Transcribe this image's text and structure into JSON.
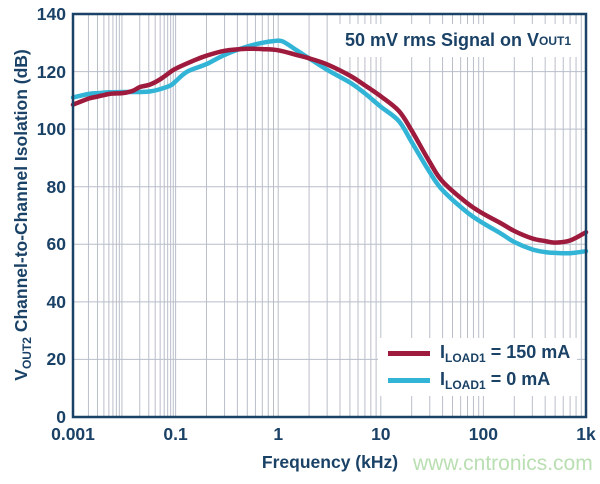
{
  "watermark": "www.cntronics.com",
  "annotation": {
    "pre": "50 mV rms Signal on V",
    "sub": "OUT1"
  },
  "axes": {
    "x_title": "Frequency (kHz)",
    "y_title_pre": "V",
    "y_title_sub": "OUT2",
    "y_title_post": " Channel-to-Channel Isolation (dB)",
    "x_tick_labels": [
      "0.001",
      "0.1",
      "1",
      "10",
      "100",
      "1k"
    ],
    "y_tick_labels": [
      "0",
      "20",
      "40",
      "60",
      "80",
      "100",
      "120",
      "140"
    ]
  },
  "legend": {
    "items": [
      {
        "pre": "I",
        "sub": "LOAD1",
        "post": " = 150 mA",
        "color": "#9e1b3d"
      },
      {
        "pre": "I",
        "sub": "LOAD1",
        "post": " = 0 mA",
        "color": "#31b4d6"
      }
    ]
  },
  "colors": {
    "text_navy": "#1a4166",
    "axis_border": "#1a4166",
    "gridline": "#b9bec9",
    "series_150ma": "#9e1b3d",
    "series_0ma": "#31b4d6",
    "watermark_green": "#b9dfb2",
    "background": "#ffffff"
  },
  "chart_data": {
    "type": "line",
    "title": "",
    "annotation": "50 mV rms Signal on VOUT1",
    "xlabel": "Frequency (kHz)",
    "ylabel": "VOUT2 Channel-to-Channel Isolation (dB)",
    "x_scale": "log",
    "xlim_kHz": [
      0.001,
      1000
    ],
    "ylim_dB": [
      0,
      140
    ],
    "x_major_ticks_kHz": [
      0.001,
      0.1,
      1,
      10,
      100,
      1000
    ],
    "y_ticks_dB": [
      0,
      20,
      40,
      60,
      80,
      100,
      120,
      140
    ],
    "grid": true,
    "legend_position": "lower right",
    "series": [
      {
        "name": "I_LOAD1 = 150 mA",
        "color": "#9e1b3d",
        "points": [
          [
            0.001,
            108.5
          ],
          [
            0.002,
            110.6
          ],
          [
            0.003,
            111.3
          ],
          [
            0.005,
            112.2
          ],
          [
            0.007,
            112.4
          ],
          [
            0.01,
            112.6
          ],
          [
            0.015,
            113.4
          ],
          [
            0.02,
            114.6
          ],
          [
            0.032,
            115.5
          ],
          [
            0.05,
            117.3
          ],
          [
            0.08,
            119.9
          ],
          [
            0.1,
            121.0
          ],
          [
            0.15,
            123.8
          ],
          [
            0.2,
            125.5
          ],
          [
            0.3,
            127.2
          ],
          [
            0.5,
            127.9
          ],
          [
            0.7,
            127.8
          ],
          [
            1,
            127.4
          ],
          [
            1.5,
            125.8
          ],
          [
            2,
            124.6
          ],
          [
            3,
            122.5
          ],
          [
            5,
            118.6
          ],
          [
            7,
            115.2
          ],
          [
            10,
            111.4
          ],
          [
            15,
            106.3
          ],
          [
            20,
            99.5
          ],
          [
            30,
            88.5
          ],
          [
            40,
            81.8
          ],
          [
            70,
            74.2
          ],
          [
            100,
            70.6
          ],
          [
            150,
            67.2
          ],
          [
            200,
            64.6
          ],
          [
            300,
            62.0
          ],
          [
            400,
            61.1
          ],
          [
            500,
            60.6
          ],
          [
            700,
            61.3
          ],
          [
            1000,
            64.2
          ]
        ]
      },
      {
        "name": "I_LOAD1 = 0 mA",
        "color": "#31b4d6",
        "points": [
          [
            0.001,
            111.0
          ],
          [
            0.002,
            112.2
          ],
          [
            0.003,
            112.5
          ],
          [
            0.005,
            112.8
          ],
          [
            0.01,
            112.9
          ],
          [
            0.02,
            112.9
          ],
          [
            0.032,
            113.1
          ],
          [
            0.05,
            113.9
          ],
          [
            0.08,
            115.2
          ],
          [
            0.1,
            116.6
          ],
          [
            0.13,
            120.0
          ],
          [
            0.2,
            122.6
          ],
          [
            0.3,
            125.8
          ],
          [
            0.5,
            128.7
          ],
          [
            0.7,
            130.0
          ],
          [
            0.9,
            130.6
          ],
          [
            1.1,
            130.5
          ],
          [
            1.5,
            127.5
          ],
          [
            2,
            124.6
          ],
          [
            3,
            120.6
          ],
          [
            5,
            116.2
          ],
          [
            7,
            112.4
          ],
          [
            10,
            107.8
          ],
          [
            15,
            102.8
          ],
          [
            20,
            95.5
          ],
          [
            30,
            85.0
          ],
          [
            40,
            78.8
          ],
          [
            70,
            71.0
          ],
          [
            100,
            67.3
          ],
          [
            150,
            63.6
          ],
          [
            200,
            60.8
          ],
          [
            300,
            58.2
          ],
          [
            400,
            57.3
          ],
          [
            500,
            57.0
          ],
          [
            700,
            56.9
          ],
          [
            1000,
            57.6
          ]
        ]
      }
    ]
  }
}
